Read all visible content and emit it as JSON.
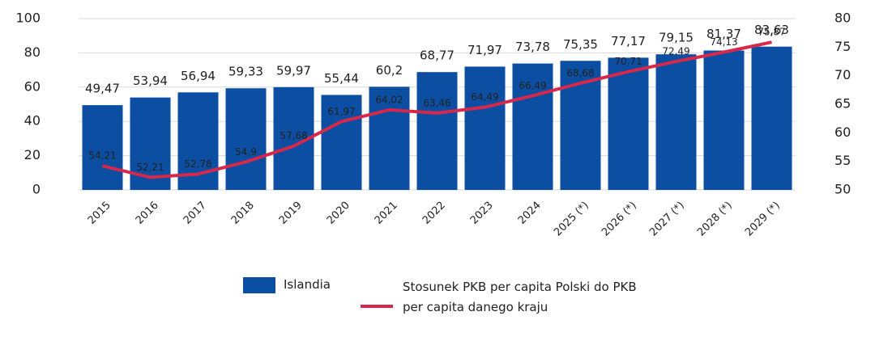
{
  "chart_data": {
    "type": "bar",
    "categories": [
      "2015",
      "2016",
      "2017",
      "2018",
      "2019",
      "2020",
      "2021",
      "2022",
      "2023",
      "2024",
      "2025 (*)",
      "2026 (*)",
      "2027 (*)",
      "2028 (*)",
      "2029 (*)"
    ],
    "series": [
      {
        "name": "Islandia",
        "type": "bar",
        "color": "#0b4ea2",
        "values": [
          49.47,
          53.94,
          56.94,
          59.33,
          59.97,
          55.44,
          60.2,
          68.77,
          71.97,
          73.78,
          75.35,
          77.17,
          79.15,
          81.37,
          83.63
        ],
        "value_labels": [
          "49,47",
          "53,94",
          "56,94",
          "59,33",
          "59,97",
          "55,44",
          "60,2",
          "68,77",
          "71,97",
          "73,78",
          "75,35",
          "77,17",
          "79,15",
          "81,37",
          "83,63"
        ]
      },
      {
        "name": "Stosunek PKB per capita Polski do PKB per capita danego kraju",
        "type": "line",
        "axis": "y2",
        "color": "#d6284b",
        "values": [
          54.21,
          52.21,
          52.78,
          54.9,
          57.68,
          61.97,
          64.02,
          63.46,
          64.49,
          66.49,
          68.68,
          70.71,
          72.49,
          74.13,
          75.87
        ],
        "value_labels": [
          "54,21",
          "52,21",
          "52,78",
          "54,9",
          "57,68",
          "61,97",
          "64,02",
          "63,46",
          "64,49",
          "66,49",
          "68,68",
          "70,71",
          "72,49",
          "74,13",
          "75,87"
        ]
      }
    ],
    "ylim": [
      0,
      100
    ],
    "yticks": [
      0,
      20,
      40,
      60,
      80,
      100
    ],
    "y2lim": [
      50,
      80
    ],
    "y2ticks": [
      50,
      55,
      60,
      65,
      70,
      75,
      80
    ],
    "grid": true
  }
}
